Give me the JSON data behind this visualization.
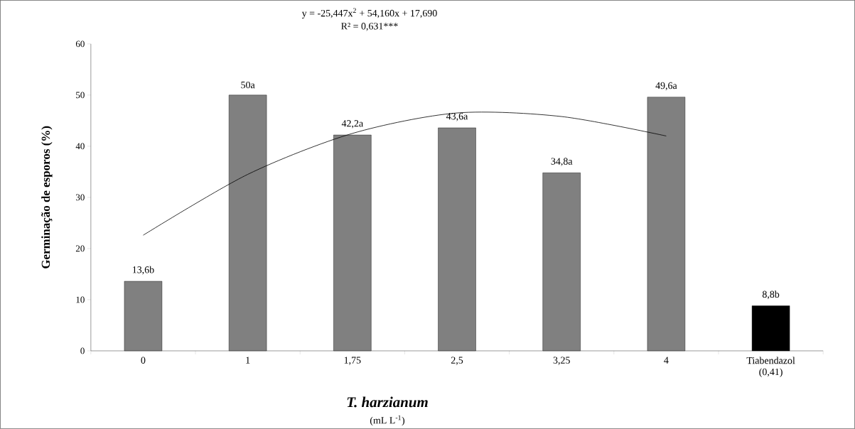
{
  "chart_data": {
    "type": "bar",
    "categories": [
      "0",
      "1",
      "1,75",
      "2,5",
      "3,25",
      "4",
      "Tiabendazol (0,41)"
    ],
    "values": [
      13.6,
      50,
      42.2,
      43.6,
      34.8,
      49.6,
      8.8
    ],
    "colors": [
      "#808080",
      "#808080",
      "#808080",
      "#808080",
      "#808080",
      "#808080",
      "#000000"
    ],
    "value_labels": [
      "13,6b",
      "50a",
      "42,2a",
      "43,6a",
      "34,8a",
      "49,6a",
      "8,8b"
    ],
    "series": [
      {
        "type": "line",
        "color": "#000000",
        "values": [
          22.6,
          34.5,
          42.5,
          46.5,
          45.8,
          42,
          null
        ]
      }
    ],
    "xlabel": "T. harzianum",
    "ylabel": "Germinação de esporos (%)",
    "annotations": [
      "y = -25,447x$^{2}$ + 54,160x + 17,690",
      "R² = 0,631***",
      "(mL L$^{-1}$)"
    ],
    "ylim": [
      0,
      60
    ],
    "yticks": [
      0,
      10,
      20,
      30,
      40,
      50,
      60
    ],
    "grid": false
  }
}
